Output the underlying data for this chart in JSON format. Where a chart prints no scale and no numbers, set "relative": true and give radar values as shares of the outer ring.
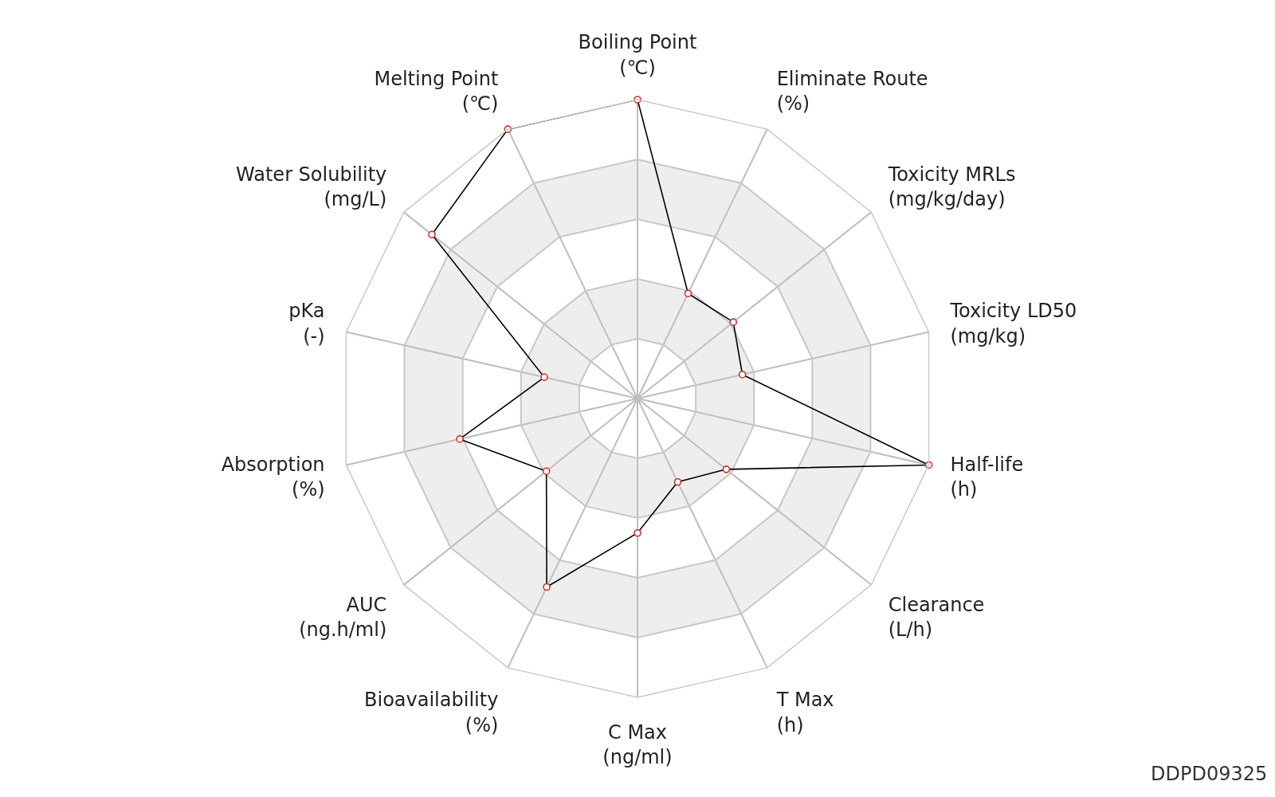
{
  "chart_data": {
    "type": "radar",
    "categories": [
      "Boiling Point\n(℃)",
      "Eliminate Route\n(%)",
      "Toxicity MRLs\n(mg/kg/day)",
      "Toxicity LD50\n(mg/kg)",
      "Half-life\n(h)",
      "Clearance\n(L/h)",
      "T Max\n(h)",
      "C Max\n(ng/ml)",
      "Bioavailability\n(%)",
      "AUC\n(ng.h/ml)",
      "Absorption\n(%)",
      "pKa\n(-)",
      "Water Solubility\n(mg/L)",
      "Melting Point\n(℃)"
    ],
    "series": [
      {
        "color": "#000000",
        "values": [
          1.0,
          0.39,
          0.41,
          0.36,
          1.0,
          0.38,
          0.31,
          0.45,
          0.7,
          0.39,
          0.61,
          0.32,
          0.88,
          1.0
        ]
      }
    ],
    "relative": true,
    "grid": true,
    "marker": "circle",
    "annotations": [
      "DDPD09325"
    ]
  }
}
